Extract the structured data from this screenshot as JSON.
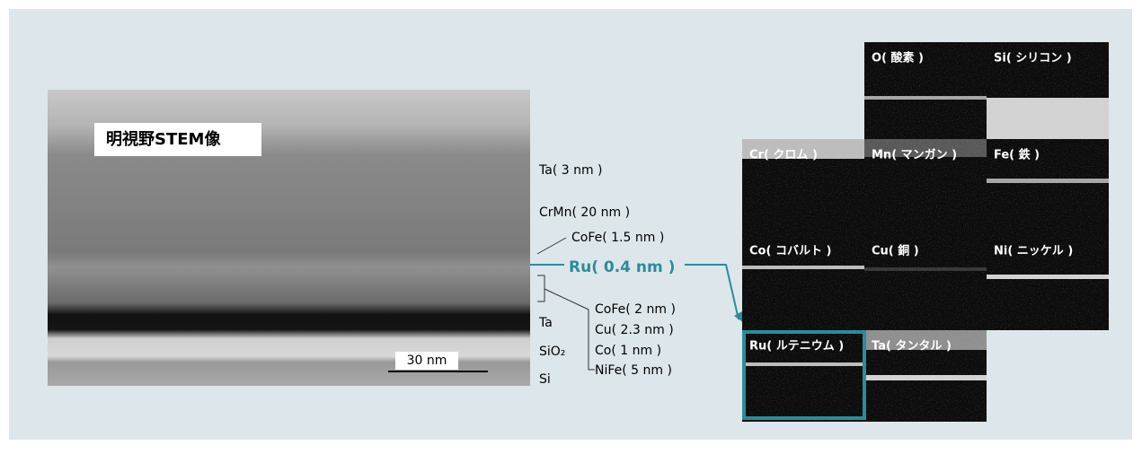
{
  "stem": {
    "title": "明視野STEM像",
    "scale": "30 nm"
  },
  "layers": {
    "top": [
      "Ta( 3 nm )",
      "CrMn( 20 nm )",
      "CoFe( 1.5 nm )"
    ],
    "highlight": "Ru( 0.4 nm )",
    "bracket": [
      "CoFe( 2 nm )",
      "Cu( 2.3 nm )",
      "Co( 1 nm )",
      "NiFe( 5 nm )"
    ],
    "bottom": [
      "Ta",
      "SiO₂",
      "Si"
    ]
  },
  "maps": [
    "O( 酸素 )",
    "Si( シリコン )",
    "Cr( クロム )",
    "Mn( マンガン )",
    "Fe( 鉄 )",
    "Co( コバルト )",
    "Cu( 銅 )",
    "Ni( ニッケル )",
    "Ru( ルテニウム )",
    "Ta( タンタル )"
  ]
}
